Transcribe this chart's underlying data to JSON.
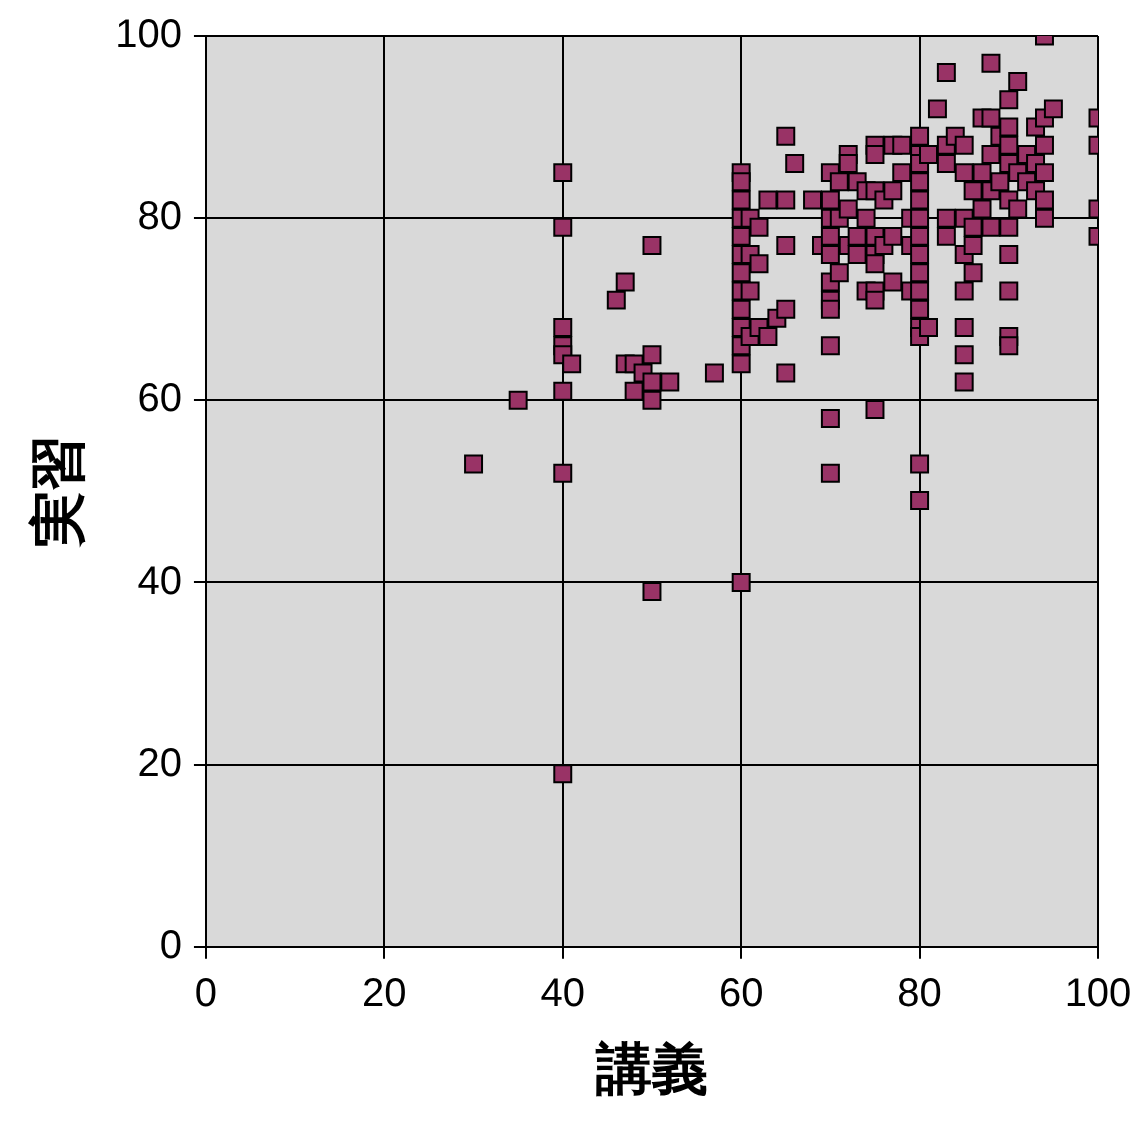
{
  "chart_data": {
    "type": "scatter",
    "xlabel": "講義",
    "ylabel": "実習",
    "x": [
      30,
      35,
      40,
      40,
      40,
      40,
      40,
      40,
      40,
      40,
      41,
      46,
      47,
      47,
      48,
      48,
      49,
      50,
      50,
      50,
      50,
      50,
      52,
      57,
      60,
      60,
      60,
      60,
      60,
      60,
      60,
      60,
      60,
      60,
      60,
      60,
      60,
      61,
      61,
      61,
      61,
      62,
      62,
      62,
      63,
      63,
      64,
      65,
      65,
      65,
      65,
      65,
      66,
      68,
      69,
      70,
      70,
      70,
      70,
      70,
      70,
      70,
      70,
      70,
      70,
      70,
      71,
      71,
      71,
      72,
      72,
      72,
      72,
      73,
      73,
      73,
      74,
      74,
      74,
      75,
      75,
      75,
      75,
      75,
      75,
      75,
      75,
      75,
      76,
      76,
      77,
      77,
      77,
      77,
      78,
      78,
      79,
      79,
      79,
      80,
      80,
      80,
      80,
      80,
      80,
      80,
      80,
      80,
      80,
      80,
      80,
      80,
      80,
      80,
      81,
      81,
      82,
      83,
      83,
      83,
      83,
      83,
      84,
      85,
      85,
      85,
      85,
      85,
      85,
      85,
      85,
      86,
      86,
      86,
      86,
      87,
      87,
      87,
      88,
      88,
      88,
      88,
      88,
      89,
      89,
      90,
      90,
      90,
      90,
      90,
      90,
      90,
      90,
      90,
      90,
      91,
      91,
      91,
      92,
      92,
      93,
      93,
      93,
      94,
      94,
      94,
      94,
      94,
      94,
      95,
      100,
      100,
      100,
      100
    ],
    "values": [
      53,
      60,
      85,
      79,
      68,
      66,
      65,
      61,
      52,
      19,
      64,
      71,
      73,
      64,
      61,
      64,
      63,
      77,
      65,
      62,
      60,
      39,
      62,
      63,
      64,
      40,
      85,
      84,
      82,
      80,
      78,
      76,
      74,
      72,
      70,
      68,
      66,
      80,
      76,
      72,
      67,
      79,
      75,
      68,
      82,
      67,
      69,
      89,
      82,
      77,
      70,
      63,
      86,
      82,
      77,
      85,
      82,
      80,
      78,
      76,
      73,
      71,
      70,
      66,
      58,
      52,
      84,
      80,
      74,
      87,
      86,
      81,
      77,
      84,
      78,
      76,
      83,
      80,
      72,
      88,
      87,
      83,
      78,
      76,
      75,
      72,
      71,
      59,
      82,
      77,
      88,
      83,
      78,
      73,
      88,
      85,
      80,
      77,
      72,
      89,
      87,
      86,
      84,
      82,
      80,
      78,
      76,
      74,
      72,
      70,
      68,
      67,
      53,
      49,
      87,
      68,
      92,
      96,
      88,
      86,
      80,
      78,
      89,
      88,
      85,
      80,
      76,
      72,
      68,
      65,
      62,
      83,
      79,
      77,
      74,
      91,
      85,
      81,
      97,
      91,
      87,
      83,
      79,
      84,
      89,
      93,
      90,
      88,
      86,
      82,
      79,
      76,
      72,
      67,
      66,
      95,
      85,
      81,
      87,
      84,
      90,
      86,
      83,
      100,
      91,
      88,
      85,
      82,
      80,
      92,
      91,
      88,
      81,
      78
    ],
    "color": "#993366",
    "marker": "square",
    "grid": true,
    "xlim": [
      0,
      100
    ],
    "xticks": [
      0,
      20,
      40,
      60,
      80,
      100
    ],
    "ylim": [
      0,
      100
    ],
    "yticks": [
      0,
      20,
      40,
      60,
      80,
      100
    ]
  }
}
